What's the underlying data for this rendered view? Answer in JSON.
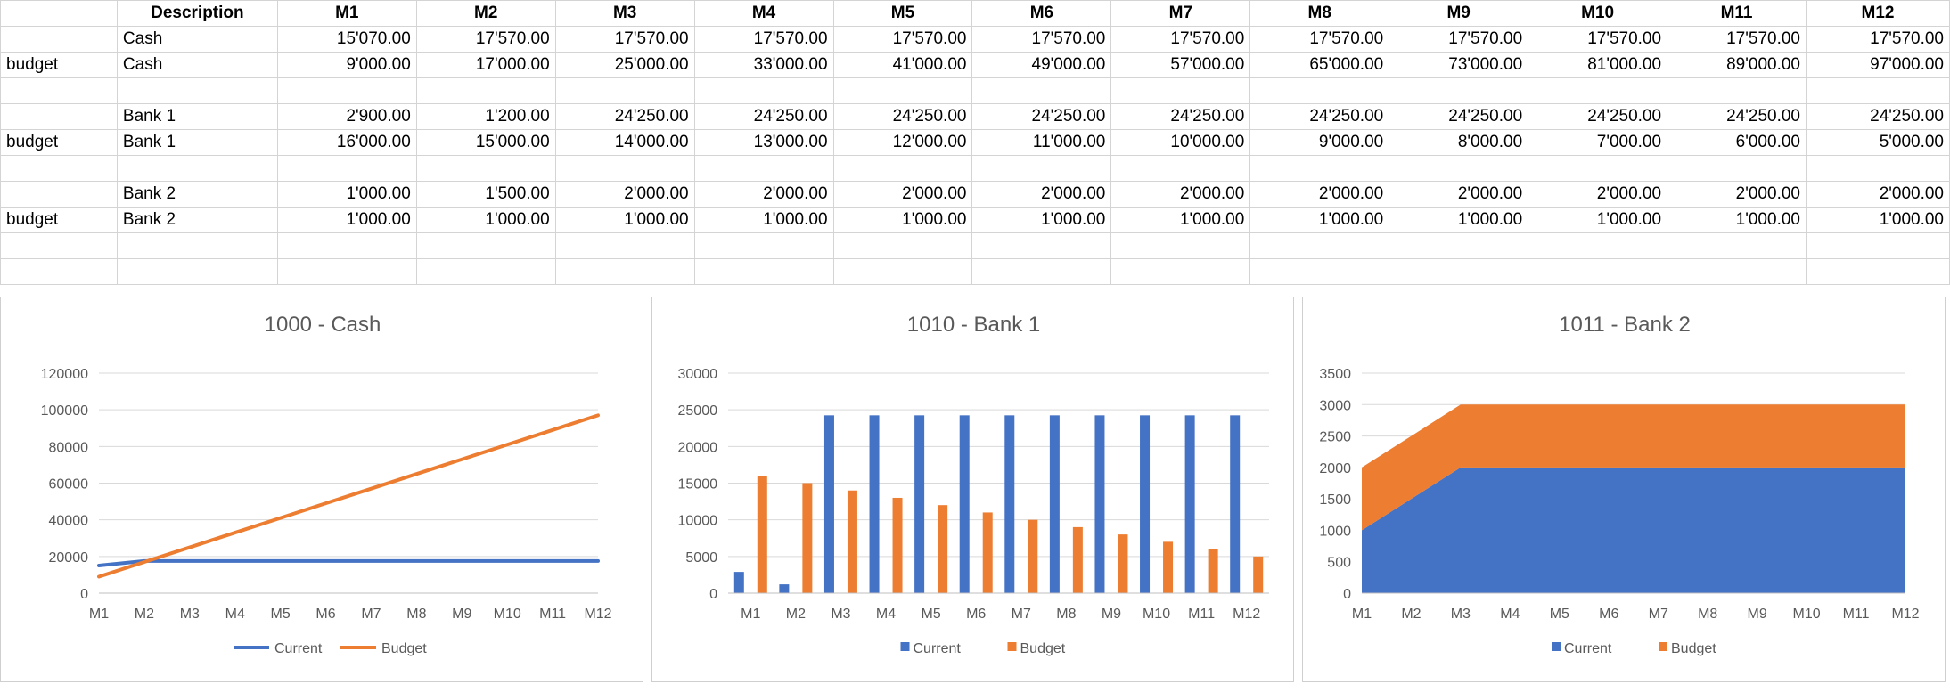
{
  "table": {
    "header": [
      "",
      "Description",
      "M1",
      "M2",
      "M3",
      "M4",
      "M5",
      "M6",
      "M7",
      "M8",
      "M9",
      "M10",
      "M11",
      "M12"
    ],
    "rows": [
      [
        "",
        "Cash",
        "15'070.00",
        "17'570.00",
        "17'570.00",
        "17'570.00",
        "17'570.00",
        "17'570.00",
        "17'570.00",
        "17'570.00",
        "17'570.00",
        "17'570.00",
        "17'570.00",
        "17'570.00"
      ],
      [
        "budget",
        "Cash",
        "9'000.00",
        "17'000.00",
        "25'000.00",
        "33'000.00",
        "41'000.00",
        "49'000.00",
        "57'000.00",
        "65'000.00",
        "73'000.00",
        "81'000.00",
        "89'000.00",
        "97'000.00"
      ],
      [
        "",
        "",
        "",
        "",
        "",
        "",
        "",
        "",
        "",
        "",
        "",
        "",
        "",
        ""
      ],
      [
        "",
        "Bank 1",
        "2'900.00",
        "1'200.00",
        "24'250.00",
        "24'250.00",
        "24'250.00",
        "24'250.00",
        "24'250.00",
        "24'250.00",
        "24'250.00",
        "24'250.00",
        "24'250.00",
        "24'250.00"
      ],
      [
        "budget",
        "Bank 1",
        "16'000.00",
        "15'000.00",
        "14'000.00",
        "13'000.00",
        "12'000.00",
        "11'000.00",
        "10'000.00",
        "9'000.00",
        "8'000.00",
        "7'000.00",
        "6'000.00",
        "5'000.00"
      ],
      [
        "",
        "",
        "",
        "",
        "",
        "",
        "",
        "",
        "",
        "",
        "",
        "",
        "",
        ""
      ],
      [
        "",
        "Bank 2",
        "1'000.00",
        "1'500.00",
        "2'000.00",
        "2'000.00",
        "2'000.00",
        "2'000.00",
        "2'000.00",
        "2'000.00",
        "2'000.00",
        "2'000.00",
        "2'000.00",
        "2'000.00"
      ],
      [
        "budget",
        "Bank 2",
        "1'000.00",
        "1'000.00",
        "1'000.00",
        "1'000.00",
        "1'000.00",
        "1'000.00",
        "1'000.00",
        "1'000.00",
        "1'000.00",
        "1'000.00",
        "1'000.00",
        "1'000.00"
      ],
      [
        "",
        "",
        "",
        "",
        "",
        "",
        "",
        "",
        "",
        "",
        "",
        "",
        "",
        ""
      ],
      [
        "",
        "",
        "",
        "",
        "",
        "",
        "",
        "",
        "",
        "",
        "",
        "",
        "",
        ""
      ]
    ]
  },
  "colors": {
    "current": "#4472c4",
    "budget": "#ed7d31",
    "gridline": "#d9d9d9",
    "axis_text": "#595959"
  },
  "chart_data": [
    {
      "type": "line",
      "title": "1000 - Cash",
      "categories": [
        "M1",
        "M2",
        "M3",
        "M4",
        "M5",
        "M6",
        "M7",
        "M8",
        "M9",
        "M10",
        "M11",
        "M12"
      ],
      "series": [
        {
          "name": "Current",
          "values": [
            15070,
            17570,
            17570,
            17570,
            17570,
            17570,
            17570,
            17570,
            17570,
            17570,
            17570,
            17570
          ]
        },
        {
          "name": "Budget",
          "values": [
            9000,
            17000,
            25000,
            33000,
            41000,
            49000,
            57000,
            65000,
            73000,
            81000,
            89000,
            97000
          ]
        }
      ],
      "ylim": [
        0,
        120000
      ],
      "yticks": [
        0,
        20000,
        40000,
        60000,
        80000,
        100000,
        120000
      ],
      "grid": true,
      "legend": "bottom"
    },
    {
      "type": "bar",
      "title": "1010 - Bank 1",
      "categories": [
        "M1",
        "M2",
        "M3",
        "M4",
        "M5",
        "M6",
        "M7",
        "M8",
        "M9",
        "M10",
        "M11",
        "M12"
      ],
      "series": [
        {
          "name": "Current",
          "values": [
            2900,
            1200,
            24250,
            24250,
            24250,
            24250,
            24250,
            24250,
            24250,
            24250,
            24250,
            24250
          ]
        },
        {
          "name": "Budget",
          "values": [
            16000,
            15000,
            14000,
            13000,
            12000,
            11000,
            10000,
            9000,
            8000,
            7000,
            6000,
            5000
          ]
        }
      ],
      "ylim": [
        0,
        30000
      ],
      "yticks": [
        0,
        5000,
        10000,
        15000,
        20000,
        25000,
        30000
      ],
      "grid": true,
      "legend": "bottom"
    },
    {
      "type": "area",
      "stacked": true,
      "title": "1011 - Bank 2",
      "categories": [
        "M1",
        "M2",
        "M3",
        "M4",
        "M5",
        "M6",
        "M7",
        "M8",
        "M9",
        "M10",
        "M11",
        "M12"
      ],
      "series": [
        {
          "name": "Current",
          "values": [
            1000,
            1500,
            2000,
            2000,
            2000,
            2000,
            2000,
            2000,
            2000,
            2000,
            2000,
            2000
          ]
        },
        {
          "name": "Budget",
          "values": [
            1000,
            1000,
            1000,
            1000,
            1000,
            1000,
            1000,
            1000,
            1000,
            1000,
            1000,
            1000
          ]
        }
      ],
      "ylim": [
        0,
        3500
      ],
      "yticks": [
        0,
        500,
        1000,
        1500,
        2000,
        2500,
        3000,
        3500
      ],
      "grid": true,
      "legend": "bottom"
    }
  ]
}
